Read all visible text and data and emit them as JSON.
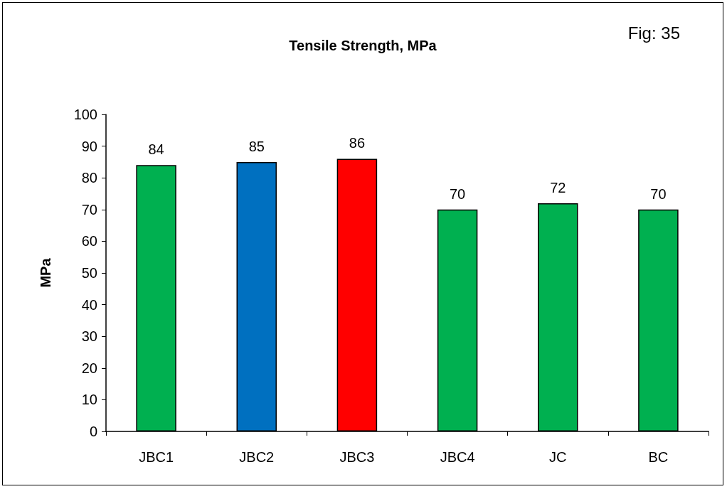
{
  "chart_data": {
    "type": "bar",
    "title": "Tensile Strength, MPa",
    "ylabel": "MPa",
    "annotations": [
      "Fig: 35"
    ],
    "categories": [
      "JBC1",
      "JBC2",
      "JBC3",
      "JBC4",
      "JC",
      "BC"
    ],
    "values": [
      84,
      85,
      86,
      70,
      72,
      70
    ],
    "colors": [
      "#00b050",
      "#0070c0",
      "#ff0000",
      "#00b050",
      "#00b050",
      "#00b050"
    ],
    "ylim": [
      0,
      100
    ],
    "yticks": [
      0,
      10,
      20,
      30,
      40,
      50,
      60,
      70,
      80,
      90,
      100
    ],
    "grid": false,
    "data_labels": true
  }
}
